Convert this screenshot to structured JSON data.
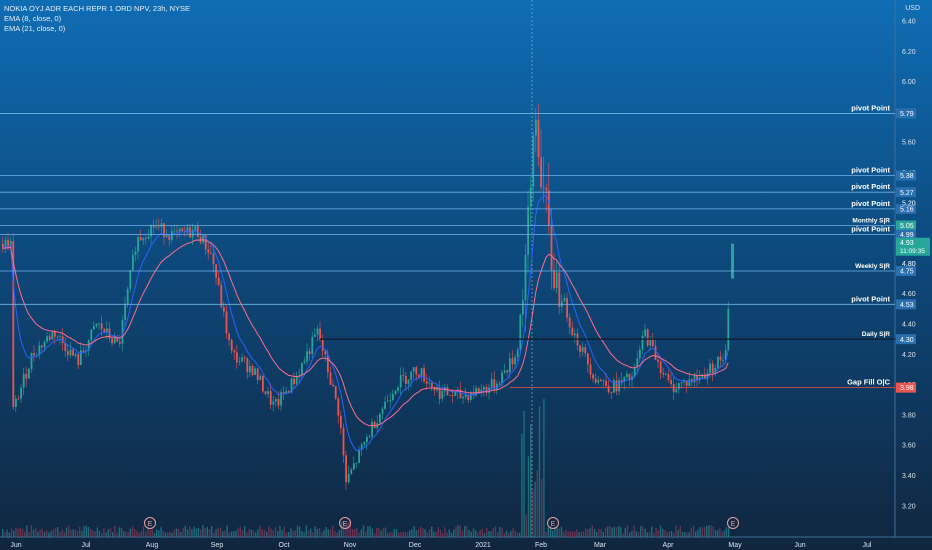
{
  "legend": {
    "symbol_line": "NOKIA OYJ ADR EACH REPR 1 ORD NPV, 23h, NYSE",
    "ema1": "EMA (8, close, 0)",
    "ema2": "EMA (21, close, 0)"
  },
  "colors": {
    "up": "#26a69a",
    "down": "#ef5350",
    "ema_fast": "#2962ff",
    "ema_slow": "#ff6b8b",
    "level_line": "#6fb4e8",
    "last_price_badge": "#26a69a",
    "gap_fill_badge": "#ef5350"
  },
  "chart_data": {
    "type": "candlestick",
    "currency": "USD",
    "ylim": [
      3.1,
      6.5
    ],
    "y_ticks": [
      "6.40",
      "6.20",
      "6.00",
      "5.80",
      "5.60",
      "5.40",
      "5.20",
      "5.00",
      "4.80",
      "4.60",
      "4.40",
      "4.20",
      "4.00",
      "3.80",
      "3.60",
      "3.40",
      "3.20"
    ],
    "x_ticks": [
      "Jun",
      "Jul",
      "Aug",
      "Sep",
      "Oct",
      "Nov",
      "Dec",
      "2021",
      "Feb",
      "Mar",
      "Apr",
      "May",
      "Jun",
      "Jul"
    ],
    "levels": [
      {
        "label": "pivot Point",
        "price": 5.79,
        "badge": "5.79"
      },
      {
        "label": "pivot Point",
        "price": 5.38,
        "badge": "5.38"
      },
      {
        "label": "pivot Point",
        "price": 5.27,
        "badge": "5.27"
      },
      {
        "label": "pivot Point",
        "price": 5.16,
        "badge": "5.16"
      },
      {
        "label": "Monthly S|R",
        "price": 5.05,
        "badge": "5.05"
      },
      {
        "label": "pivot Point",
        "price": 4.99,
        "badge": "4.99"
      },
      {
        "label": "Weekly S|R",
        "price": 4.75,
        "badge": "4.75"
      },
      {
        "label": "pivot Point",
        "price": 4.53,
        "badge": "4.53"
      },
      {
        "label": "Daily S|R",
        "price": 4.3,
        "badge": "4.30"
      },
      {
        "label": "Gap Fill O|C",
        "price": 3.98,
        "badge": "3.98"
      }
    ],
    "last_price": {
      "value": "4.93",
      "countdown": "11:09:35"
    },
    "price_scale_extra": [
      "4.80",
      "5.20"
    ],
    "earnings_marker": "E",
    "close_series": [
      {
        "date": "2020-06-01",
        "close": 3.82
      },
      {
        "date": "2020-06-10",
        "close": 4.2
      },
      {
        "date": "2020-06-20",
        "close": 4.35
      },
      {
        "date": "2020-07-01",
        "close": 4.15
      },
      {
        "date": "2020-07-10",
        "close": 4.4
      },
      {
        "date": "2020-07-20",
        "close": 4.25
      },
      {
        "date": "2020-07-28",
        "close": 4.95
      },
      {
        "date": "2020-08-05",
        "close": 5.05
      },
      {
        "date": "2020-08-15",
        "close": 4.98
      },
      {
        "date": "2020-08-25",
        "close": 5.02
      },
      {
        "date": "2020-09-01",
        "close": 4.85
      },
      {
        "date": "2020-09-10",
        "close": 4.2
      },
      {
        "date": "2020-09-20",
        "close": 4.1
      },
      {
        "date": "2020-09-30",
        "close": 3.85
      },
      {
        "date": "2020-10-10",
        "close": 4.05
      },
      {
        "date": "2020-10-20",
        "close": 4.35
      },
      {
        "date": "2020-10-30",
        "close": 3.8
      },
      {
        "date": "2020-11-02",
        "close": 3.35
      },
      {
        "date": "2020-11-15",
        "close": 3.75
      },
      {
        "date": "2020-11-25",
        "close": 4.0
      },
      {
        "date": "2020-12-05",
        "close": 4.1
      },
      {
        "date": "2020-12-15",
        "close": 3.95
      },
      {
        "date": "2020-12-25",
        "close": 3.92
      },
      {
        "date": "2021-01-10",
        "close": 4.0
      },
      {
        "date": "2021-01-20",
        "close": 4.2
      },
      {
        "date": "2021-01-27",
        "close": 5.3
      },
      {
        "date": "2021-01-28",
        "close": 5.85
      },
      {
        "date": "2021-02-05",
        "close": 4.8
      },
      {
        "date": "2021-02-15",
        "close": 4.35
      },
      {
        "date": "2021-02-25",
        "close": 4.05
      },
      {
        "date": "2021-03-05",
        "close": 3.98
      },
      {
        "date": "2021-03-15",
        "close": 4.05
      },
      {
        "date": "2021-03-20",
        "close": 4.35
      },
      {
        "date": "2021-04-01",
        "close": 3.98
      },
      {
        "date": "2021-04-15",
        "close": 4.05
      },
      {
        "date": "2021-04-27",
        "close": 4.2
      },
      {
        "date": "2021-04-29",
        "close": 4.93
      }
    ]
  }
}
